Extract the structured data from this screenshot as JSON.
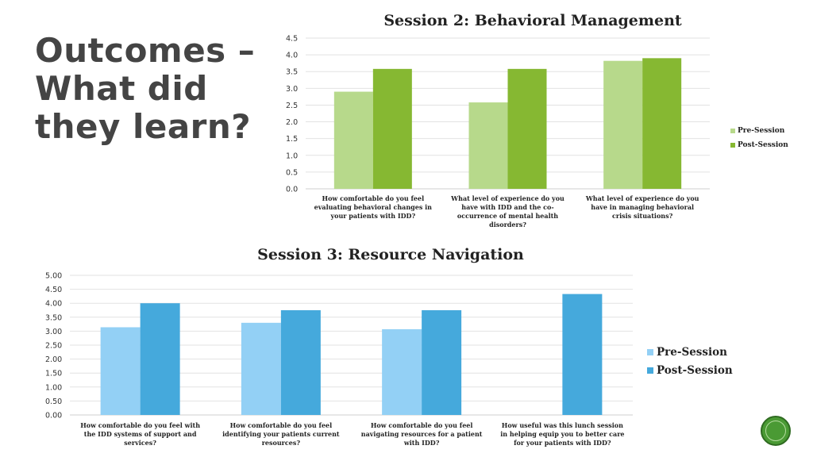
{
  "slide": {
    "title_lines": [
      "Outcomes –",
      "What did",
      "they learn?"
    ]
  },
  "chart_data": [
    {
      "type": "bar",
      "title": "Session 2: Behavioral Management",
      "categories": [
        "How comfortable do you feel evaluating behavioral changes in your patients with IDD?",
        "What level of experience do you have with IDD and the co-occurrence of mental health disorders?",
        "What level of experience do you have in managing behavioral crisis situations?"
      ],
      "category_lines": [
        [
          "How comfortable do you feel",
          "evaluating behavioral changes in",
          "your patients with IDD?"
        ],
        [
          "What level of experience do you",
          "have with IDD and the co-",
          "occurrence of mental health",
          "disorders?"
        ],
        [
          "What level of experience do you",
          "have in managing behavioral",
          "crisis situations?"
        ]
      ],
      "series": [
        {
          "name": "Pre-Session",
          "values": [
            2.9,
            2.58,
            3.82
          ],
          "color": "#b7d98b"
        },
        {
          "name": "Post-Session",
          "values": [
            3.58,
            3.58,
            3.9
          ],
          "color": "#86b832"
        }
      ],
      "ylim": [
        0,
        4.5
      ],
      "ytick_step": 0.5,
      "ytick_labels": [
        "0.0",
        "0.5",
        "1.0",
        "1.5",
        "2.0",
        "2.5",
        "3.0",
        "3.5",
        "4.0",
        "4.5"
      ],
      "xlabel": "",
      "ylabel": "",
      "grid": true,
      "legend": "right"
    },
    {
      "type": "bar",
      "title": "Session 3: Resource Navigation",
      "categories": [
        "How comfortable do you feel with the IDD systems of support and services?",
        "How comfortable do you feel identifying your patients current resources?",
        "How comfortable do you feel navigating resources for a patient with IDD?",
        "How useful was this lunch session in helping equip you to better care for your patients with IDD?"
      ],
      "category_lines": [
        [
          "How comfortable do you feel with",
          "the IDD systems of support and",
          "services?"
        ],
        [
          "How comfortable do you feel",
          "identifying your patients current",
          "resources?"
        ],
        [
          "How comfortable do you feel",
          "navigating resources for a patient",
          "with IDD?"
        ],
        [
          "How useful was this lunch session",
          "in helping equip you to better care",
          "for your patients with IDD?"
        ]
      ],
      "series": [
        {
          "name": "Pre-Session",
          "values": [
            3.14,
            3.3,
            3.07,
            null
          ],
          "color": "#93d0f5"
        },
        {
          "name": "Post-Session",
          "values": [
            4.0,
            3.75,
            3.75,
            4.33
          ],
          "color": "#45a9dc"
        }
      ],
      "ylim": [
        0,
        5
      ],
      "ytick_step": 0.5,
      "ytick_labels": [
        "0.00",
        "0.50",
        "1.00",
        "1.50",
        "2.00",
        "2.50",
        "3.00",
        "3.50",
        "4.00",
        "4.50",
        "5.00"
      ],
      "xlabel": "",
      "ylabel": "",
      "grid": true,
      "legend": "right"
    }
  ]
}
